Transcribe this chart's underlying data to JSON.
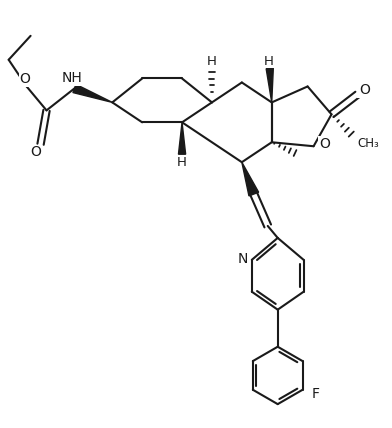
{
  "bg_color": "#ffffff",
  "line_color": "#1a1a1a",
  "line_width": 1.5,
  "font_size": 10,
  "figsize": [
    3.92,
    4.28
  ],
  "dpi": 100,
  "xlim": [
    0,
    9.8
  ],
  "ylim": [
    0,
    10.7
  ]
}
